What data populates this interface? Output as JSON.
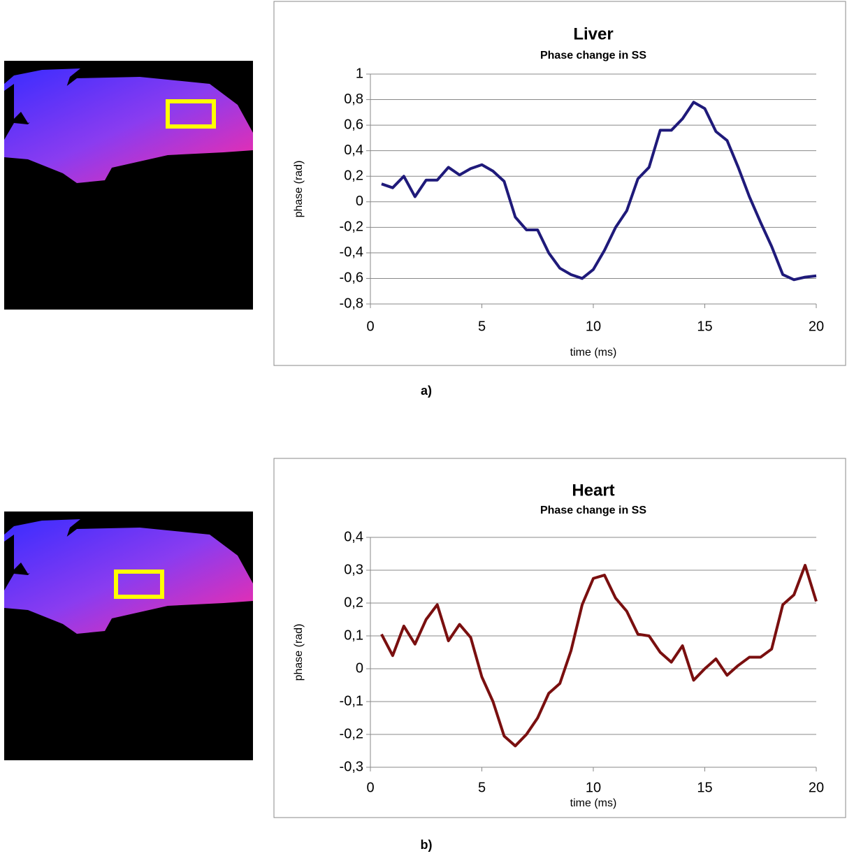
{
  "chart_data": [
    {
      "type": "line",
      "title": "Liver",
      "subtitle": "Phase change in SS",
      "x_label": "time (ms)",
      "y_label": "phase (rad)",
      "caption": "a)",
      "x": [
        0.5,
        1,
        1.5,
        2,
        2.5,
        3,
        3.5,
        4,
        4.5,
        5,
        5.5,
        6,
        6.5,
        7,
        7.5,
        8,
        8.5,
        9,
        9.5,
        10,
        10.5,
        11,
        11.5,
        12,
        12.5,
        13,
        13.5,
        14,
        14.5,
        15,
        15.5,
        16,
        16.5,
        17,
        17.5,
        18,
        18.5,
        19,
        19.5,
        20
      ],
      "series": [
        {
          "color": "#1f1a7a",
          "values": [
            0.14,
            0.11,
            0.2,
            0.04,
            0.17,
            0.17,
            0.27,
            0.21,
            0.26,
            0.29,
            0.24,
            0.16,
            -0.12,
            -0.22,
            -0.22,
            -0.4,
            -0.52,
            -0.57,
            -0.6,
            -0.53,
            -0.38,
            -0.2,
            -0.07,
            0.18,
            0.27,
            0.56,
            0.56,
            0.65,
            0.78,
            0.73,
            0.55,
            0.48,
            0.27,
            0.04,
            -0.16,
            -0.35,
            -0.57,
            -0.61,
            -0.59,
            -0.58
          ]
        }
      ],
      "xlim": [
        0,
        20
      ],
      "xticks": [
        0,
        5,
        10,
        15,
        20
      ],
      "ylim": [
        -0.8,
        1
      ],
      "yticks": [
        {
          "value": -0.8,
          "label": "-0,8"
        },
        {
          "value": -0.6,
          "label": "-0,6"
        },
        {
          "value": -0.4,
          "label": "-0,4"
        },
        {
          "value": -0.2,
          "label": "-0,2"
        },
        0,
        {
          "value": 0.2,
          "label": "0,2"
        },
        {
          "value": 0.4,
          "label": "0,4"
        },
        {
          "value": 0.6,
          "label": "0,6"
        },
        {
          "value": 0.8,
          "label": "0,8"
        },
        1
      ],
      "grid": true
    },
    {
      "type": "line",
      "title": "Heart",
      "subtitle": "Phase change in SS",
      "x_label": "time (ms)",
      "y_label": "phase (rad)",
      "caption": "b)",
      "x": [
        0.5,
        1,
        1.5,
        2,
        2.5,
        3,
        3.5,
        4,
        4.5,
        5,
        5.5,
        6,
        6.5,
        7,
        7.5,
        8,
        8.5,
        9,
        9.5,
        10,
        10.5,
        11,
        11.5,
        12,
        12.5,
        13,
        13.5,
        14,
        14.5,
        15,
        15.5,
        16,
        16.5,
        17,
        17.5,
        18,
        18.5,
        19,
        19.5,
        20
      ],
      "series": [
        {
          "color": "#7a0f0f",
          "values": [
            0.105,
            0.04,
            0.13,
            0.075,
            0.15,
            0.195,
            0.085,
            0.135,
            0.095,
            -0.025,
            -0.1,
            -0.205,
            -0.235,
            -0.2,
            -0.15,
            -0.075,
            -0.045,
            0.055,
            0.195,
            0.275,
            0.285,
            0.215,
            0.175,
            0.105,
            0.1,
            0.05,
            0.02,
            0.07,
            -0.035,
            0,
            0.03,
            -0.02,
            0.01,
            0.035,
            0.035,
            0.06,
            0.195,
            0.225,
            0.315,
            0.205
          ]
        }
      ],
      "xlim": [
        0,
        20
      ],
      "xticks": [
        0,
        5,
        10,
        15,
        20
      ],
      "ylim": [
        -0.3,
        0.4
      ],
      "yticks": [
        {
          "value": -0.3,
          "label": "-0,3"
        },
        {
          "value": -0.2,
          "label": "-0,2"
        },
        {
          "value": -0.1,
          "label": "-0,1"
        },
        0,
        {
          "value": 0.1,
          "label": "0,1"
        },
        {
          "value": 0.2,
          "label": "0,2"
        },
        {
          "value": 0.3,
          "label": "0,3"
        },
        {
          "value": 0.4,
          "label": "0,4"
        }
      ],
      "grid": true
    }
  ]
}
